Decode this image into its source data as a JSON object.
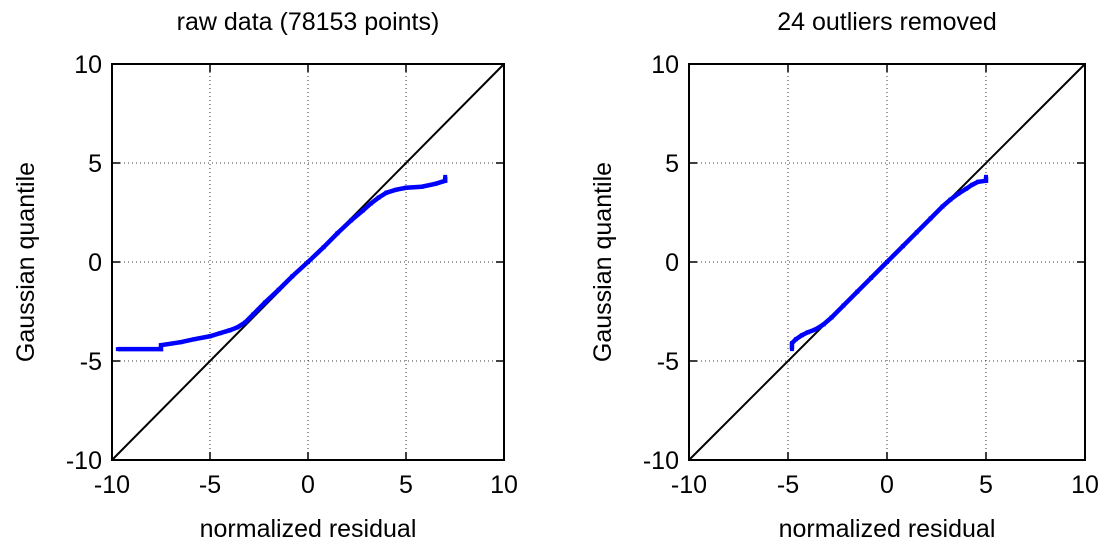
{
  "chart_data": [
    {
      "type": "scatter",
      "title": "raw data (78153 points)",
      "xlabel": "normalized residual",
      "ylabel": "Gaussian quantile",
      "xlim": [
        -10,
        10
      ],
      "ylim": [
        -10,
        10
      ],
      "xticks": [
        "-10",
        "-5",
        "0",
        "5",
        "10"
      ],
      "yticks": [
        "-10",
        "-5",
        "0",
        "5",
        "10"
      ],
      "grid": true,
      "reference_line": {
        "x": [
          -10,
          10
        ],
        "y": [
          -10,
          10
        ],
        "color": "#000000"
      },
      "series": [
        {
          "color": "#0000ff",
          "x": [
            -9.7,
            -7.5,
            -7.5,
            -6.5,
            -5.8,
            -5.0,
            -4.5,
            -4.0,
            -3.6,
            -3.2,
            -2.8,
            -2.2,
            -1.5,
            -0.8,
            0.0,
            0.8,
            1.5,
            2.2,
            2.8,
            3.2,
            3.6,
            4.0,
            4.5,
            5.0,
            5.8,
            6.5,
            7.0,
            7.0
          ],
          "y": [
            -4.4,
            -4.4,
            -4.2,
            -4.05,
            -3.9,
            -3.75,
            -3.6,
            -3.45,
            -3.3,
            -3.05,
            -2.65,
            -2.05,
            -1.4,
            -0.72,
            0.0,
            0.75,
            1.45,
            2.1,
            2.6,
            2.95,
            3.25,
            3.5,
            3.65,
            3.75,
            3.8,
            3.95,
            4.1,
            4.3
          ]
        }
      ]
    },
    {
      "type": "scatter",
      "title": "24 outliers removed",
      "xlabel": "normalized residual",
      "ylabel": "Gaussian quantile",
      "xlim": [
        -10,
        10
      ],
      "ylim": [
        -10,
        10
      ],
      "xticks": [
        "-10",
        "-5",
        "0",
        "5",
        "10"
      ],
      "yticks": [
        "-10",
        "-5",
        "0",
        "5",
        "10"
      ],
      "grid": true,
      "reference_line": {
        "x": [
          -10,
          10
        ],
        "y": [
          -10,
          10
        ],
        "color": "#000000"
      },
      "series": [
        {
          "color": "#0000ff",
          "x": [
            -4.8,
            -4.8,
            -4.6,
            -4.3,
            -4.0,
            -3.6,
            -3.2,
            -2.8,
            -2.2,
            -1.5,
            -0.8,
            0.0,
            0.8,
            1.5,
            2.2,
            2.8,
            3.2,
            3.6,
            4.0,
            4.3,
            4.6,
            5.0,
            5.0
          ],
          "y": [
            -4.4,
            -4.1,
            -3.9,
            -3.7,
            -3.55,
            -3.4,
            -3.15,
            -2.8,
            -2.2,
            -1.5,
            -0.8,
            0.0,
            0.8,
            1.5,
            2.2,
            2.8,
            3.15,
            3.45,
            3.7,
            3.9,
            4.05,
            4.1,
            4.3
          ]
        }
      ]
    }
  ]
}
